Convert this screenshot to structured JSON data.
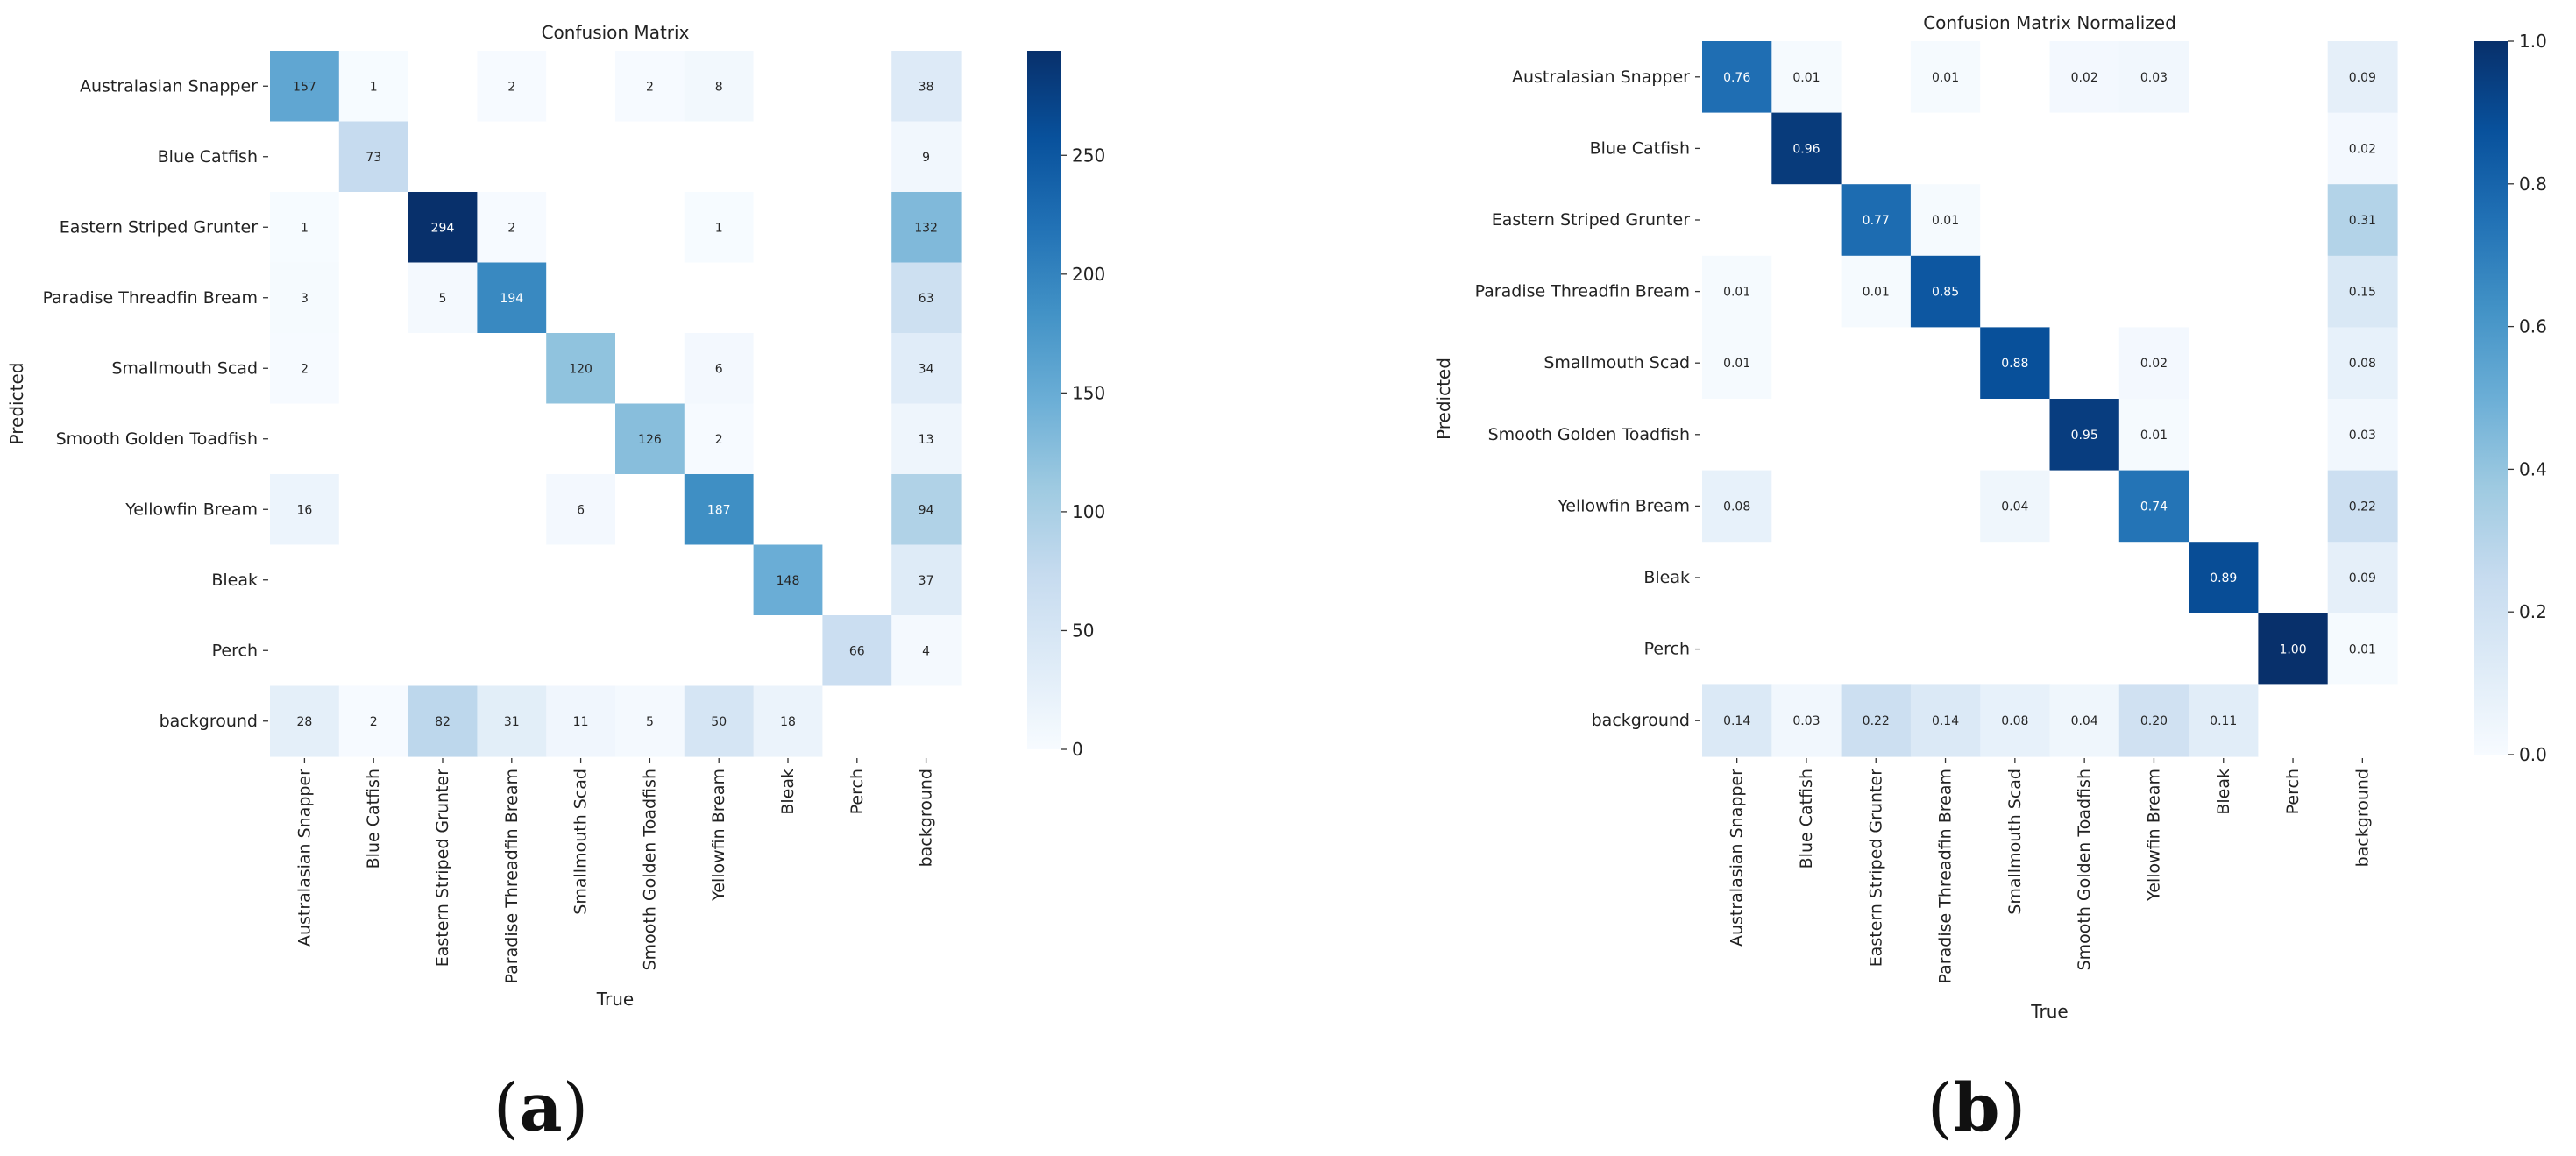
{
  "figure": {
    "panel_labels": [
      {
        "open": "(",
        "letter": "a",
        "close": ")"
      },
      {
        "open": "(",
        "letter": "b",
        "close": ")"
      }
    ]
  },
  "chart_data": [
    {
      "type": "heatmap",
      "title": "Confusion Matrix",
      "xlabel": "True",
      "ylabel": "Predicted",
      "labels": [
        "Australasian Snapper",
        "Blue Catfish",
        "Eastern Striped Grunter",
        "Paradise Threadfin Bream",
        "Smallmouth Scad",
        "Smooth Golden Toadfish",
        "Yellowfin Bream",
        "Bleak",
        "Perch",
        "background"
      ],
      "matrix": [
        [
          157,
          1,
          null,
          2,
          null,
          2,
          8,
          null,
          null,
          38
        ],
        [
          null,
          73,
          null,
          null,
          null,
          null,
          null,
          null,
          null,
          9
        ],
        [
          1,
          null,
          294,
          2,
          null,
          null,
          1,
          null,
          null,
          132
        ],
        [
          3,
          null,
          5,
          194,
          null,
          null,
          null,
          null,
          null,
          63
        ],
        [
          2,
          null,
          null,
          null,
          120,
          null,
          6,
          null,
          null,
          34
        ],
        [
          null,
          null,
          null,
          null,
          null,
          126,
          2,
          null,
          null,
          13
        ],
        [
          16,
          null,
          null,
          null,
          6,
          null,
          187,
          null,
          null,
          94
        ],
        [
          null,
          null,
          null,
          null,
          null,
          null,
          null,
          148,
          null,
          37
        ],
        [
          null,
          null,
          null,
          null,
          null,
          null,
          null,
          null,
          66,
          4
        ],
        [
          28,
          2,
          82,
          31,
          11,
          5,
          50,
          18,
          null,
          null
        ]
      ],
      "color_range": [
        0,
        294
      ],
      "colorbar_ticks": [
        0,
        50,
        100,
        150,
        200,
        250
      ],
      "decimals": 0
    },
    {
      "type": "heatmap",
      "title": "Confusion Matrix Normalized",
      "xlabel": "True",
      "ylabel": "Predicted",
      "labels": [
        "Australasian Snapper",
        "Blue Catfish",
        "Eastern Striped Grunter",
        "Paradise Threadfin Bream",
        "Smallmouth Scad",
        "Smooth Golden Toadfish",
        "Yellowfin Bream",
        "Bleak",
        "Perch",
        "background"
      ],
      "matrix": [
        [
          0.76,
          0.01,
          null,
          0.01,
          null,
          0.02,
          0.03,
          null,
          null,
          0.09
        ],
        [
          null,
          0.96,
          null,
          null,
          null,
          null,
          null,
          null,
          null,
          0.02
        ],
        [
          null,
          null,
          0.77,
          0.01,
          null,
          null,
          null,
          null,
          null,
          0.31
        ],
        [
          0.01,
          null,
          0.01,
          0.85,
          null,
          null,
          null,
          null,
          null,
          0.15
        ],
        [
          0.01,
          null,
          null,
          null,
          0.88,
          null,
          0.02,
          null,
          null,
          0.08
        ],
        [
          null,
          null,
          null,
          null,
          null,
          0.95,
          0.01,
          null,
          null,
          0.03
        ],
        [
          0.08,
          null,
          null,
          null,
          0.04,
          null,
          0.74,
          null,
          null,
          0.22
        ],
        [
          null,
          null,
          null,
          null,
          null,
          null,
          null,
          0.89,
          null,
          0.09
        ],
        [
          null,
          null,
          null,
          null,
          null,
          null,
          null,
          null,
          1.0,
          0.01
        ],
        [
          0.14,
          0.03,
          0.22,
          0.14,
          0.08,
          0.04,
          0.2,
          0.11,
          null,
          null
        ]
      ],
      "color_range": [
        0,
        1
      ],
      "colorbar_ticks": [
        "0.0",
        "0.2",
        "0.4",
        "0.6",
        "0.8",
        "1.0"
      ],
      "decimals": 2
    }
  ]
}
